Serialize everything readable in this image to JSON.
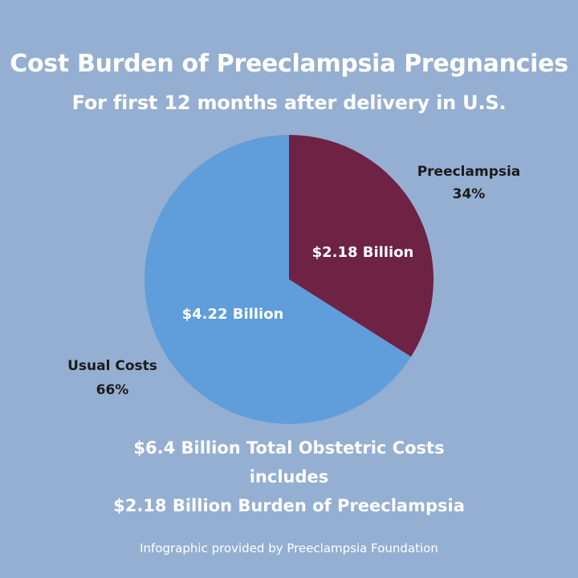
{
  "header": {
    "title": "Cost Burden of Preeclampsia Pregnancies",
    "subtitle": "For first 12 months after delivery in U.S."
  },
  "chart_data": {
    "type": "pie",
    "slices": [
      {
        "category": "Preeclampsia",
        "percent_label": "34%",
        "value": 34,
        "amount_label": "$2.18 Billion",
        "color": "#6e2244"
      },
      {
        "category": "Usual Costs",
        "percent_label": "66%",
        "value": 66,
        "amount_label": "$4.22 Billion",
        "color": "#5f9ddb"
      }
    ]
  },
  "summary": {
    "line1": "$6.4 Billion Total Obstetric Costs",
    "line2": "includes",
    "line3": "$2.18 Billion Burden of Preeclampsia"
  },
  "footer": {
    "credit": "Infographic provided by Preeclampsia Foundation"
  },
  "colors": {
    "background": "#94afd1",
    "preeclampsia": "#6e2244",
    "usual_costs": "#5f9ddb"
  }
}
